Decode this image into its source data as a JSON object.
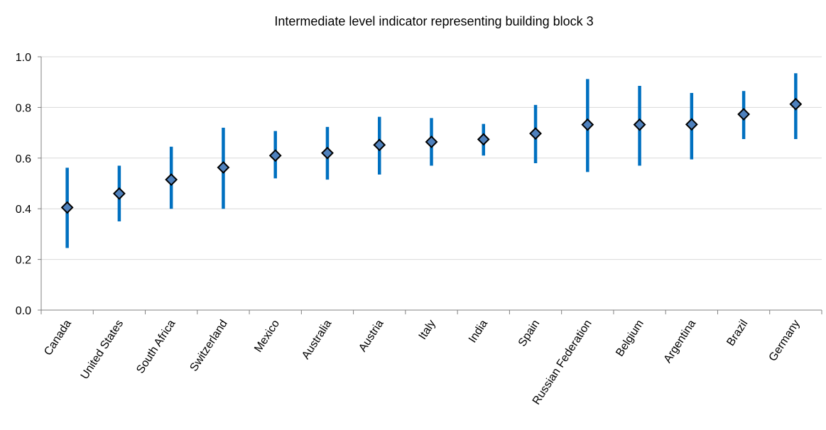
{
  "chart_data": {
    "type": "scatter",
    "title": "Intermediate level indicator representing building block 3",
    "xlabel": "",
    "ylabel": "",
    "ylim": [
      0,
      1.0
    ],
    "yticks": [
      "0.0",
      "0.2",
      "0.4",
      "0.6",
      "0.8",
      "1.0"
    ],
    "grid": true,
    "legend": "none",
    "categories": [
      "Canada",
      "United States",
      "South Africa",
      "Switzerland",
      "Mexico",
      "Australia",
      "Austria",
      "Italy",
      "India",
      "Spain",
      "Russian Federation",
      "Belgium",
      "Argentina",
      "Brazil",
      "Germany"
    ],
    "values": [
      0.405,
      0.46,
      0.515,
      0.563,
      0.61,
      0.62,
      0.652,
      0.664,
      0.674,
      0.697,
      0.732,
      0.732,
      0.733,
      0.773,
      0.813
    ],
    "low": [
      0.245,
      0.35,
      0.4,
      0.4,
      0.52,
      0.515,
      0.535,
      0.57,
      0.61,
      0.58,
      0.545,
      0.57,
      0.595,
      0.675,
      0.675
    ],
    "high": [
      0.562,
      0.57,
      0.645,
      0.72,
      0.707,
      0.723,
      0.763,
      0.758,
      0.735,
      0.81,
      0.912,
      0.885,
      0.857,
      0.865,
      0.935
    ],
    "colors": {
      "range_bar": "#0070C0",
      "marker_fill": "#4F81BD",
      "marker_stroke": "#000000",
      "grid": "#D9D9D9",
      "axis": "#808080"
    }
  }
}
